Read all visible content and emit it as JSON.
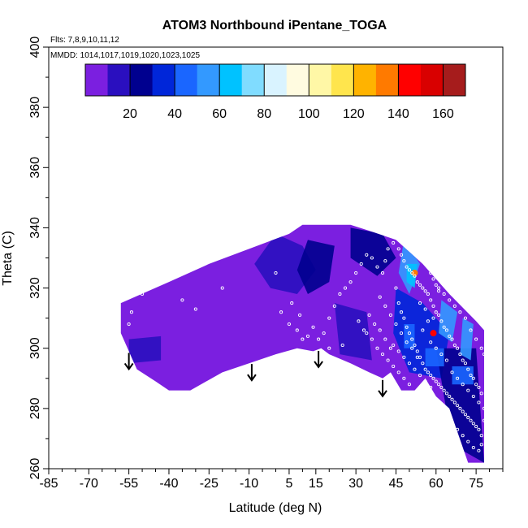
{
  "chart_data": {
    "type": "heatmap",
    "title": "ATOM3 Northbound iPentane_TOGA",
    "flights_label": "Flts: 7,8,9,10,11,12",
    "mmdd_label": "MMDD: 1014,1017,1019,1020,1023,1025",
    "xlabel": "Latitude (deg N)",
    "ylabel": "Theta (C)",
    "xlim": [
      -85,
      85
    ],
    "ylim": [
      260,
      400
    ],
    "x_tick_labels": [
      {
        "value": -85,
        "label": "-85"
      },
      {
        "value": -70,
        "label": "-70"
      },
      {
        "value": -55,
        "label": "-55"
      },
      {
        "value": -40,
        "label": "-40"
      },
      {
        "value": -25,
        "label": "-25"
      },
      {
        "value": -10,
        "label": "-10"
      },
      {
        "value": 5,
        "label": "5"
      },
      {
        "value": 15,
        "label": "15"
      },
      {
        "value": 30,
        "label": "30"
      },
      {
        "value": 45,
        "label": "45"
      },
      {
        "value": 60,
        "label": "60"
      },
      {
        "value": 75,
        "label": "75"
      }
    ],
    "y_tick_labels": [
      {
        "value": 260,
        "label": "260"
      },
      {
        "value": 280,
        "label": "280"
      },
      {
        "value": 300,
        "label": "300"
      },
      {
        "value": 320,
        "label": "320"
      },
      {
        "value": 340,
        "label": "340"
      },
      {
        "value": 360,
        "label": "360"
      },
      {
        "value": 380,
        "label": "380"
      },
      {
        "value": 400,
        "label": "400"
      }
    ],
    "colorbar": {
      "range": [
        0,
        170
      ],
      "tick_labels": [
        {
          "value": 20,
          "label": "20"
        },
        {
          "value": 40,
          "label": "40"
        },
        {
          "value": 60,
          "label": "60"
        },
        {
          "value": 80,
          "label": "80"
        },
        {
          "value": 100,
          "label": "100"
        },
        {
          "value": 120,
          "label": "120"
        },
        {
          "value": 140,
          "label": "140"
        },
        {
          "value": 160,
          "label": "160"
        }
      ],
      "segments": [
        {
          "from": 0,
          "to": 10,
          "color": "#7b1fe0"
        },
        {
          "from": 10,
          "to": 20,
          "color": "#2a0fbf"
        },
        {
          "from": 20,
          "to": 30,
          "color": "#00008f"
        },
        {
          "from": 30,
          "to": 40,
          "color": "#0026d9"
        },
        {
          "from": 40,
          "to": 50,
          "color": "#1a66ff"
        },
        {
          "from": 50,
          "to": 60,
          "color": "#3399ff"
        },
        {
          "from": 60,
          "to": 70,
          "color": "#00c2ff"
        },
        {
          "from": 70,
          "to": 80,
          "color": "#80dcff"
        },
        {
          "from": 80,
          "to": 90,
          "color": "#d9f3ff"
        },
        {
          "from": 90,
          "to": 100,
          "color": "#fffbe0"
        },
        {
          "from": 100,
          "to": 110,
          "color": "#fff7a6"
        },
        {
          "from": 110,
          "to": 120,
          "color": "#ffe54d"
        },
        {
          "from": 120,
          "to": 130,
          "color": "#ffb300"
        },
        {
          "from": 130,
          "to": 140,
          "color": "#ff7a00"
        },
        {
          "from": 140,
          "to": 150,
          "color": "#ff0000"
        },
        {
          "from": 150,
          "to": 160,
          "color": "#d90000"
        },
        {
          "from": 160,
          "to": 170,
          "color": "#a61c1c"
        }
      ]
    },
    "coverage_polygon": [
      [
        -58,
        315
      ],
      [
        -40,
        322
      ],
      [
        -25,
        328
      ],
      [
        -10,
        333
      ],
      [
        5,
        338
      ],
      [
        10,
        341
      ],
      [
        28,
        341
      ],
      [
        35,
        339
      ],
      [
        45,
        336
      ],
      [
        55,
        328
      ],
      [
        65,
        318
      ],
      [
        75,
        309
      ],
      [
        78,
        306
      ],
      [
        78,
        262
      ],
      [
        72,
        262
      ],
      [
        65,
        280
      ],
      [
        60,
        284
      ],
      [
        56,
        290
      ],
      [
        52,
        286
      ],
      [
        47,
        286
      ],
      [
        43,
        292
      ],
      [
        40,
        290
      ],
      [
        35,
        292
      ],
      [
        28,
        295
      ],
      [
        20,
        298
      ],
      [
        17,
        300
      ],
      [
        14,
        299
      ],
      [
        8,
        300
      ],
      [
        0,
        298
      ],
      [
        -10,
        295
      ],
      [
        -20,
        292
      ],
      [
        -32,
        286
      ],
      [
        -40,
        286
      ],
      [
        -45,
        289
      ],
      [
        -52,
        293
      ],
      [
        -58,
        305
      ]
    ],
    "field_regions": [
      {
        "polygon": [
          [
            -55,
            303
          ],
          [
            -43,
            304
          ],
          [
            -43,
            296
          ],
          [
            -55,
            295
          ]
        ],
        "value": 14
      },
      {
        "polygon": [
          [
            0,
            338
          ],
          [
            10,
            334
          ],
          [
            15,
            326
          ],
          [
            8,
            318
          ],
          [
            -2,
            320
          ],
          [
            -8,
            328
          ]
        ],
        "value": 14
      },
      {
        "polygon": [
          [
            12,
            336
          ],
          [
            22,
            334
          ],
          [
            20,
            322
          ],
          [
            12,
            318
          ],
          [
            8,
            326
          ]
        ],
        "value": 22
      },
      {
        "polygon": [
          [
            28,
            340
          ],
          [
            40,
            338
          ],
          [
            45,
            330
          ],
          [
            38,
            324
          ],
          [
            28,
            330
          ]
        ],
        "value": 22
      },
      {
        "polygon": [
          [
            22,
            315
          ],
          [
            34,
            312
          ],
          [
            36,
            296
          ],
          [
            24,
            298
          ]
        ],
        "value": 15
      },
      {
        "polygon": [
          [
            45,
            320
          ],
          [
            55,
            315
          ],
          [
            65,
            305
          ],
          [
            62,
            290
          ],
          [
            50,
            292
          ],
          [
            44,
            305
          ]
        ],
        "value": 30
      },
      {
        "polygon": [
          [
            60,
            300
          ],
          [
            75,
            300
          ],
          [
            78,
            262
          ],
          [
            66,
            268
          ]
        ],
        "value": 26
      },
      {
        "polygon": [
          [
            48,
            336
          ],
          [
            54,
            328
          ],
          [
            50,
            318
          ],
          [
            46,
            325
          ]
        ],
        "value": 55
      },
      {
        "polygon": [
          [
            49,
            328
          ],
          [
            53,
            328
          ],
          [
            52,
            320
          ],
          [
            49,
            322
          ]
        ],
        "value": 65
      },
      {
        "polygon": [
          [
            62,
            316
          ],
          [
            68,
            312
          ],
          [
            66,
            302
          ],
          [
            61,
            305
          ]
        ],
        "value": 55
      },
      {
        "polygon": [
          [
            70,
            310
          ],
          [
            74,
            308
          ],
          [
            73,
            296
          ],
          [
            69,
            298
          ]
        ],
        "value": 50
      },
      {
        "polygon": [
          [
            56,
            300
          ],
          [
            63,
            300
          ],
          [
            63,
            294
          ],
          [
            56,
            294
          ]
        ],
        "value": 48
      },
      {
        "polygon": [
          [
            66,
            294
          ],
          [
            74,
            294
          ],
          [
            74,
            288
          ],
          [
            66,
            288
          ]
        ],
        "value": 45
      },
      {
        "polygon": [
          [
            48,
            308
          ],
          [
            52,
            308
          ],
          [
            52,
            300
          ],
          [
            48,
            300
          ]
        ],
        "value": 40
      }
    ],
    "hotspots": [
      {
        "lat": 52,
        "theta": 325,
        "value": 130
      },
      {
        "lat": 59,
        "theta": 305,
        "value": 145
      }
    ],
    "arrows_lat": [
      -55,
      -9,
      16,
      40
    ],
    "sample_points": [
      [
        -55,
        308
      ],
      [
        -54,
        312
      ],
      [
        -50,
        318
      ],
      [
        -35,
        316
      ],
      [
        -30,
        313
      ],
      [
        -20,
        320
      ],
      [
        0,
        325
      ],
      [
        2,
        312
      ],
      [
        5,
        308
      ],
      [
        8,
        306
      ],
      [
        10,
        303
      ],
      [
        12,
        304
      ],
      [
        16,
        303
      ],
      [
        18,
        305
      ],
      [
        20,
        310
      ],
      [
        22,
        314
      ],
      [
        24,
        318
      ],
      [
        26,
        320
      ],
      [
        28,
        322
      ],
      [
        30,
        325
      ],
      [
        32,
        328
      ],
      [
        34,
        331
      ],
      [
        36,
        330
      ],
      [
        38,
        327
      ],
      [
        40,
        325
      ],
      [
        41,
        329
      ],
      [
        42,
        333
      ],
      [
        44,
        335
      ],
      [
        46,
        333
      ],
      [
        47,
        331
      ],
      [
        48,
        329
      ],
      [
        49,
        327
      ],
      [
        50,
        326
      ],
      [
        51,
        325
      ],
      [
        52,
        324
      ],
      [
        53,
        322
      ],
      [
        54,
        321
      ],
      [
        55,
        320
      ],
      [
        56,
        319
      ],
      [
        57,
        318
      ],
      [
        58,
        316
      ],
      [
        59,
        314
      ],
      [
        60,
        312
      ],
      [
        61,
        311
      ],
      [
        62,
        309
      ],
      [
        63,
        307
      ],
      [
        64,
        306
      ],
      [
        65,
        304
      ],
      [
        66,
        303
      ],
      [
        67,
        301
      ],
      [
        68,
        300
      ],
      [
        69,
        298
      ],
      [
        70,
        296
      ],
      [
        71,
        295
      ],
      [
        72,
        293
      ],
      [
        73,
        291
      ],
      [
        74,
        290
      ],
      [
        75,
        288
      ],
      [
        76,
        287
      ],
      [
        77,
        285
      ],
      [
        45,
        320
      ],
      [
        46,
        315
      ],
      [
        47,
        312
      ],
      [
        48,
        310
      ],
      [
        49,
        307
      ],
      [
        50,
        305
      ],
      [
        51,
        303
      ],
      [
        52,
        301
      ],
      [
        53,
        299
      ],
      [
        54,
        297
      ],
      [
        55,
        295
      ],
      [
        56,
        293
      ],
      [
        57,
        292
      ],
      [
        58,
        291
      ],
      [
        59,
        290
      ],
      [
        60,
        289
      ],
      [
        61,
        288
      ],
      [
        62,
        287
      ],
      [
        63,
        286
      ],
      [
        64,
        285
      ],
      [
        65,
        284
      ],
      [
        66,
        283
      ],
      [
        67,
        282
      ],
      [
        68,
        281
      ],
      [
        69,
        280
      ],
      [
        70,
        279
      ],
      [
        71,
        278
      ],
      [
        72,
        277
      ],
      [
        73,
        276
      ],
      [
        74,
        275
      ],
      [
        75,
        274
      ],
      [
        76,
        273
      ],
      [
        77,
        271
      ],
      [
        77,
        268
      ],
      [
        76,
        266
      ],
      [
        34,
        305
      ],
      [
        36,
        303
      ],
      [
        38,
        300
      ],
      [
        40,
        298
      ],
      [
        42,
        296
      ],
      [
        44,
        294
      ],
      [
        46,
        292
      ],
      [
        48,
        290
      ],
      [
        50,
        288
      ],
      [
        39,
        317
      ],
      [
        41,
        314
      ],
      [
        43,
        311
      ],
      [
        45,
        308
      ],
      [
        47,
        305
      ],
      [
        49,
        302
      ],
      [
        51,
        300
      ],
      [
        53,
        297
      ],
      [
        55,
        306
      ],
      [
        57,
        309
      ],
      [
        59,
        310
      ],
      [
        61,
        320
      ],
      [
        63,
        318
      ],
      [
        65,
        316
      ],
      [
        67,
        314
      ],
      [
        69,
        312
      ],
      [
        71,
        310
      ],
      [
        73,
        306
      ],
      [
        75,
        303
      ],
      [
        77,
        300
      ],
      [
        78,
        298
      ],
      [
        54,
        315
      ],
      [
        56,
        313
      ],
      [
        58,
        302
      ],
      [
        60,
        300
      ],
      [
        62,
        298
      ],
      [
        64,
        296
      ],
      [
        66,
        292
      ],
      [
        68,
        290
      ],
      [
        70,
        288
      ],
      [
        72,
        286
      ],
      [
        74,
        284
      ],
      [
        76,
        282
      ],
      [
        78,
        280
      ],
      [
        78,
        276
      ],
      [
        60,
        281
      ],
      [
        62,
        279
      ],
      [
        64,
        277
      ],
      [
        66,
        275
      ],
      [
        68,
        273
      ],
      [
        70,
        271
      ],
      [
        72,
        269
      ],
      [
        74,
        267
      ],
      [
        44,
        301
      ],
      [
        46,
        299
      ],
      [
        48,
        297
      ],
      [
        50,
        295
      ],
      [
        52,
        293
      ],
      [
        54,
        291
      ],
      [
        56,
        289
      ],
      [
        58,
        287
      ],
      [
        31,
        309
      ],
      [
        33,
        306
      ],
      [
        35,
        311
      ],
      [
        37,
        308
      ],
      [
        39,
        306
      ],
      [
        41,
        303
      ],
      [
        43,
        300
      ],
      [
        20,
        300
      ],
      [
        25,
        301
      ],
      [
        14,
        307
      ],
      [
        9,
        311
      ],
      [
        6,
        315
      ],
      [
        57,
        327
      ],
      [
        58,
        325
      ],
      [
        59,
        323
      ],
      [
        60,
        321
      ],
      [
        61,
        319
      ],
      [
        62,
        322
      ],
      [
        63,
        324
      ]
    ]
  }
}
